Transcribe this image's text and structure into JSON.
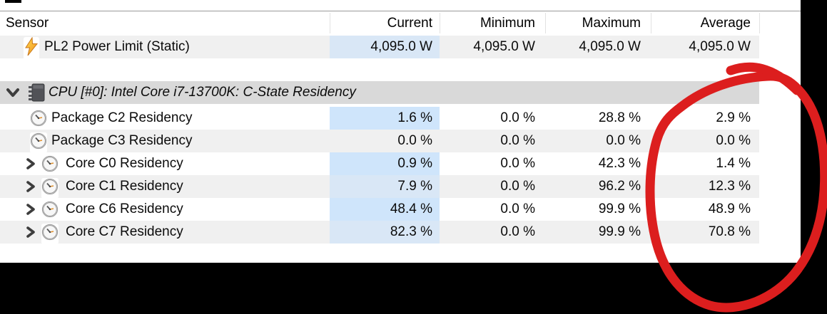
{
  "table": {
    "sensor_header": "Sensor",
    "value_columns": [
      "Current",
      "Minimum",
      "Maximum",
      "Average"
    ],
    "rows": [
      {
        "kind": "sensor",
        "icon": "lightning-icon",
        "label": "PL2 Power Limit (Static)",
        "values": [
          "4,095.0 W",
          "4,095.0 W",
          "4,095.0 W",
          "4,095.0 W"
        ],
        "zebra": "gray",
        "current_highlight": true
      },
      {
        "kind": "spacer"
      },
      {
        "kind": "section",
        "expander": "chevron-down-icon",
        "icon": "chip-icon",
        "label": "CPU [#0]: Intel Core i7-13700K: C-State Residency"
      },
      {
        "kind": "sensor",
        "icon": "clock-icon",
        "label": "Package C2 Residency",
        "values": [
          "1.6 %",
          "0.0 %",
          "28.8 %",
          "2.9 %"
        ],
        "zebra": "white",
        "current_highlight": true
      },
      {
        "kind": "sensor",
        "icon": "clock-icon",
        "label": "Package C3 Residency",
        "values": [
          "0.0 %",
          "0.0 %",
          "0.0 %",
          "0.0 %"
        ],
        "zebra": "gray",
        "current_highlight": false
      },
      {
        "kind": "sensor",
        "expander": "chevron-right-icon",
        "icon": "clock-icon",
        "label": "Core C0 Residency",
        "values": [
          "0.9 %",
          "0.0 %",
          "42.3 %",
          "1.4 %"
        ],
        "zebra": "white",
        "current_highlight": true
      },
      {
        "kind": "sensor",
        "expander": "chevron-right-icon",
        "icon": "clock-icon",
        "label": "Core C1 Residency",
        "values": [
          "7.9 %",
          "0.0 %",
          "96.2 %",
          "12.3 %"
        ],
        "zebra": "gray",
        "current_highlight": true
      },
      {
        "kind": "sensor",
        "expander": "chevron-right-icon",
        "icon": "clock-icon",
        "label": "Core C6 Residency",
        "values": [
          "48.4 %",
          "0.0 %",
          "99.9 %",
          "48.9 %"
        ],
        "zebra": "white",
        "current_highlight": true
      },
      {
        "kind": "sensor",
        "expander": "chevron-right-icon",
        "icon": "clock-icon",
        "label": "Core C7 Residency",
        "values": [
          "82.3 %",
          "0.0 %",
          "99.9 %",
          "70.8 %"
        ],
        "zebra": "gray",
        "current_highlight": true
      }
    ]
  },
  "annotation": {
    "shape": "hand-drawn-circle",
    "circles": "Average column values",
    "color": "#dc1e1e"
  },
  "colors": {
    "row_alt_gray": "#f0f0f0",
    "section_band": "#d9d9d9",
    "current_cell_blue": "#cfe5fb",
    "current_cell_blue_on_gray": "#d9e7f6",
    "annotation_red": "#dc1e1e"
  }
}
